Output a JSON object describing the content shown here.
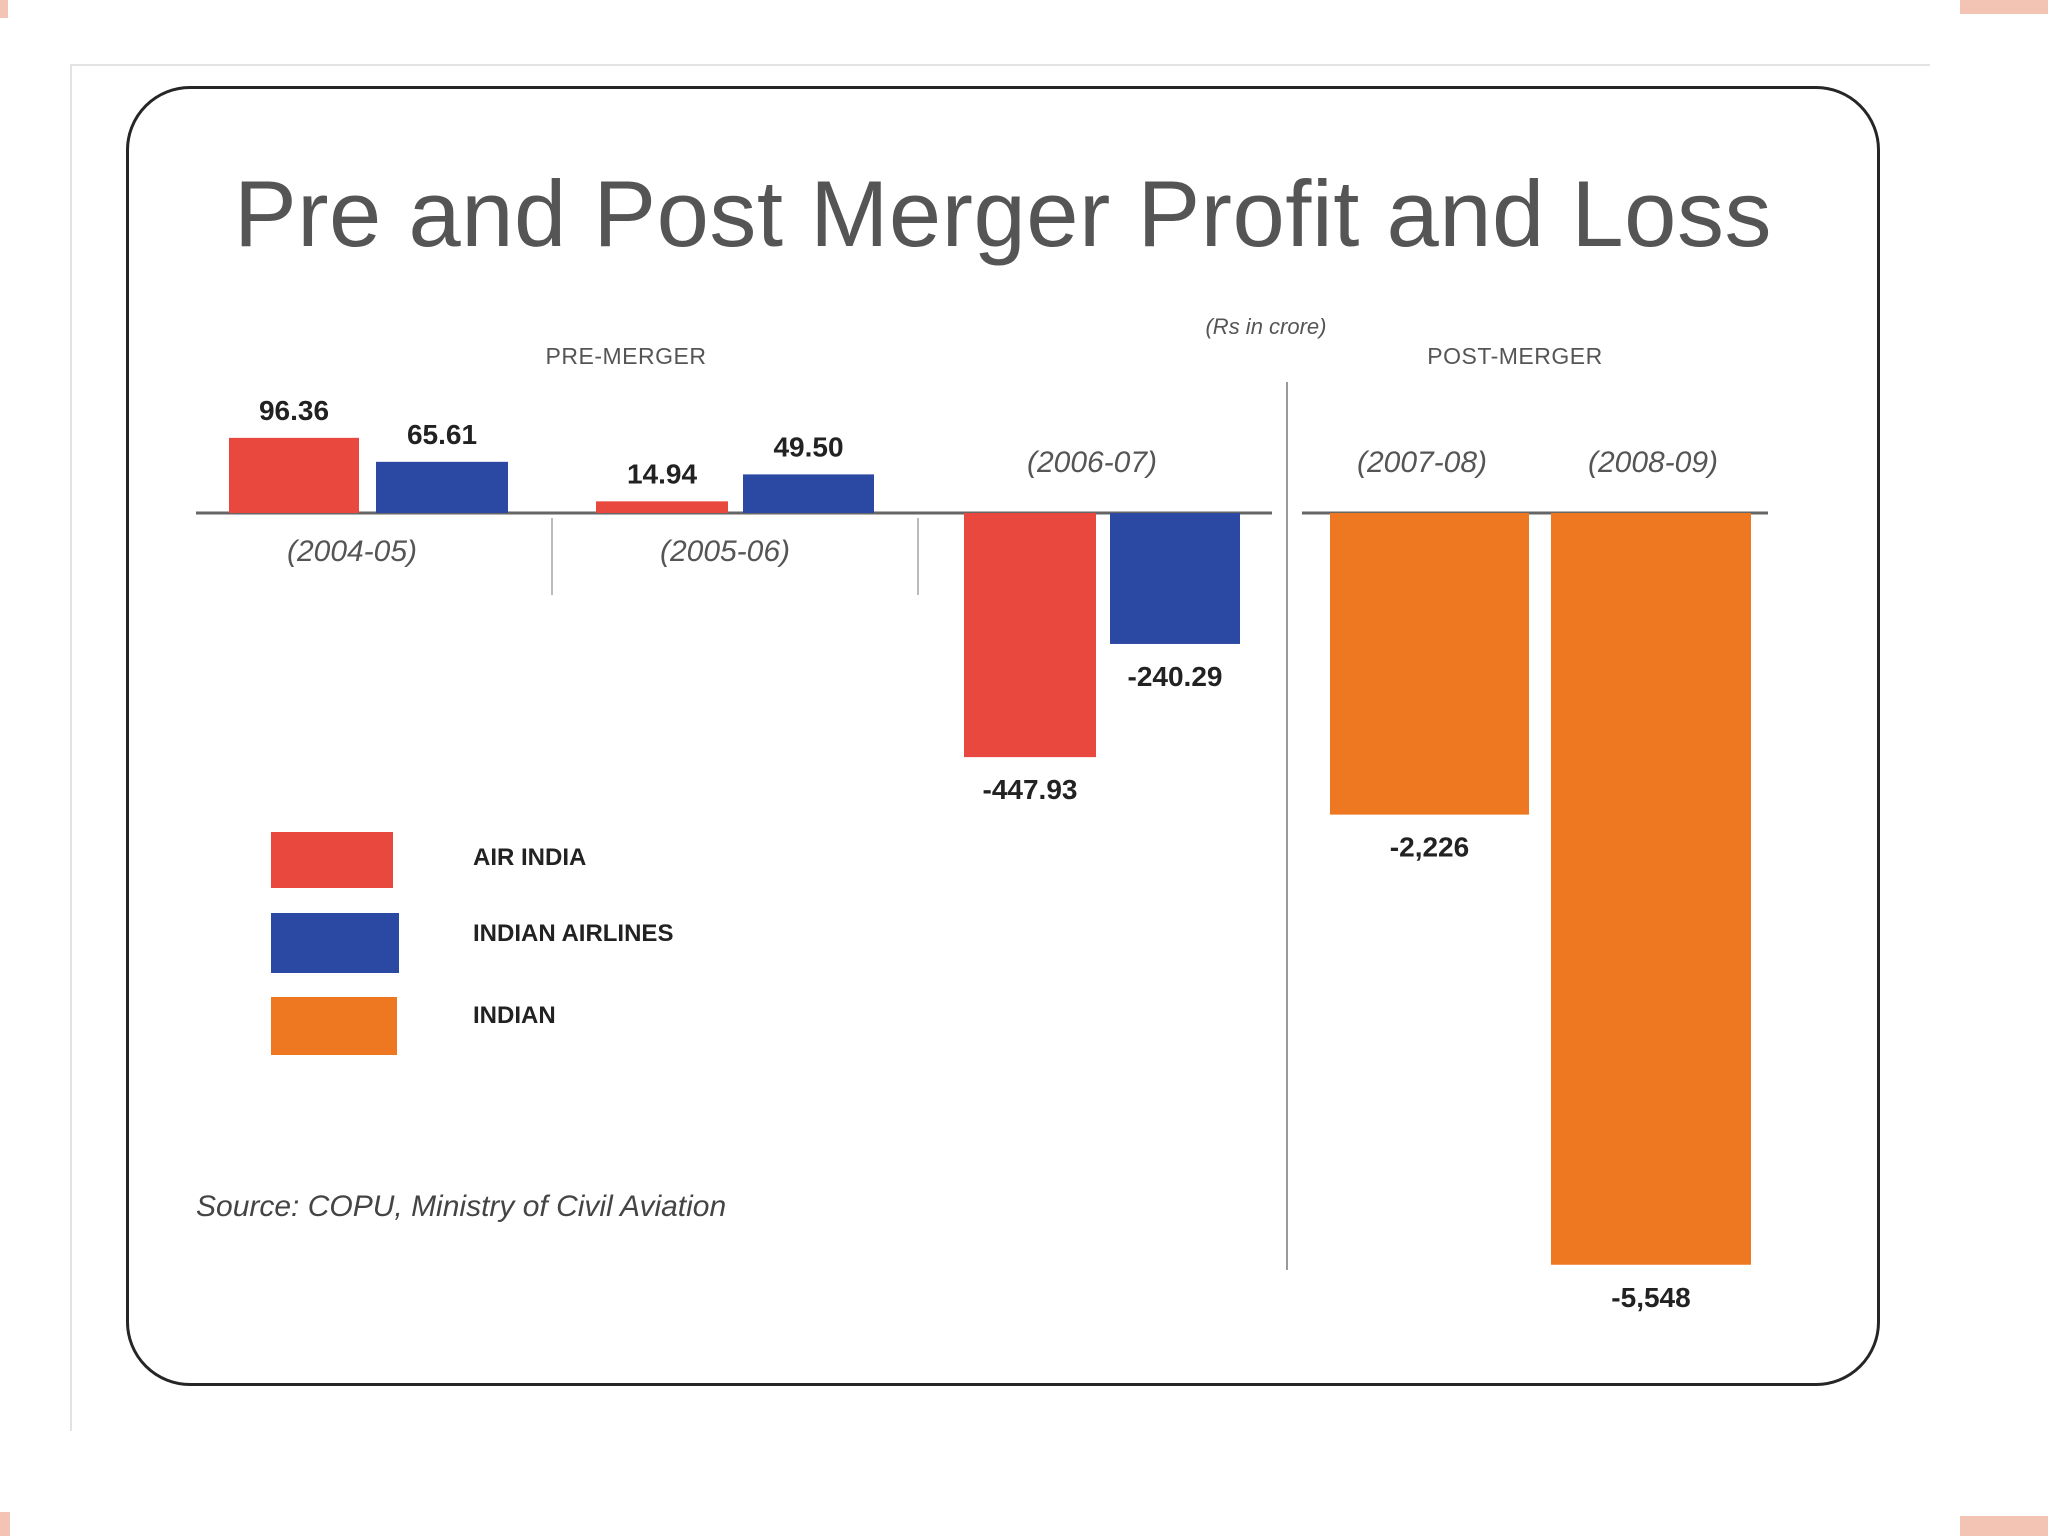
{
  "chart_data": {
    "type": "bar",
    "title": "Pre and Post Merger Profit and Loss",
    "unit": "(Rs in crore)",
    "sections": [
      "PRE-MERGER",
      "POST-MERGER"
    ],
    "categories": [
      "(2004-05)",
      "(2005-06)",
      "(2006-07)",
      "(2007-08)",
      "(2008-09)"
    ],
    "series": [
      {
        "name": "AIR INDIA",
        "color": "#e8483e",
        "values": [
          96.36,
          14.94,
          -447.93,
          null,
          null
        ],
        "labels": [
          "96.36",
          "14.94",
          "-447.93",
          "",
          ""
        ]
      },
      {
        "name": "INDIAN AIRLINES",
        "color": "#2b49a3",
        "values": [
          65.61,
          49.5,
          -240.29,
          null,
          null
        ],
        "labels": [
          "65.61",
          "49.50",
          "-240.29",
          "",
          ""
        ]
      },
      {
        "name": "INDIAN",
        "color": "#ee7722",
        "values": [
          null,
          null,
          null,
          -2226,
          -5548
        ],
        "labels": [
          "",
          "",
          "",
          "-2,226",
          "-5,548"
        ]
      }
    ],
    "source": "Source: COPU, Ministry of Civil Aviation",
    "ylabel": "",
    "xlabel": ""
  }
}
